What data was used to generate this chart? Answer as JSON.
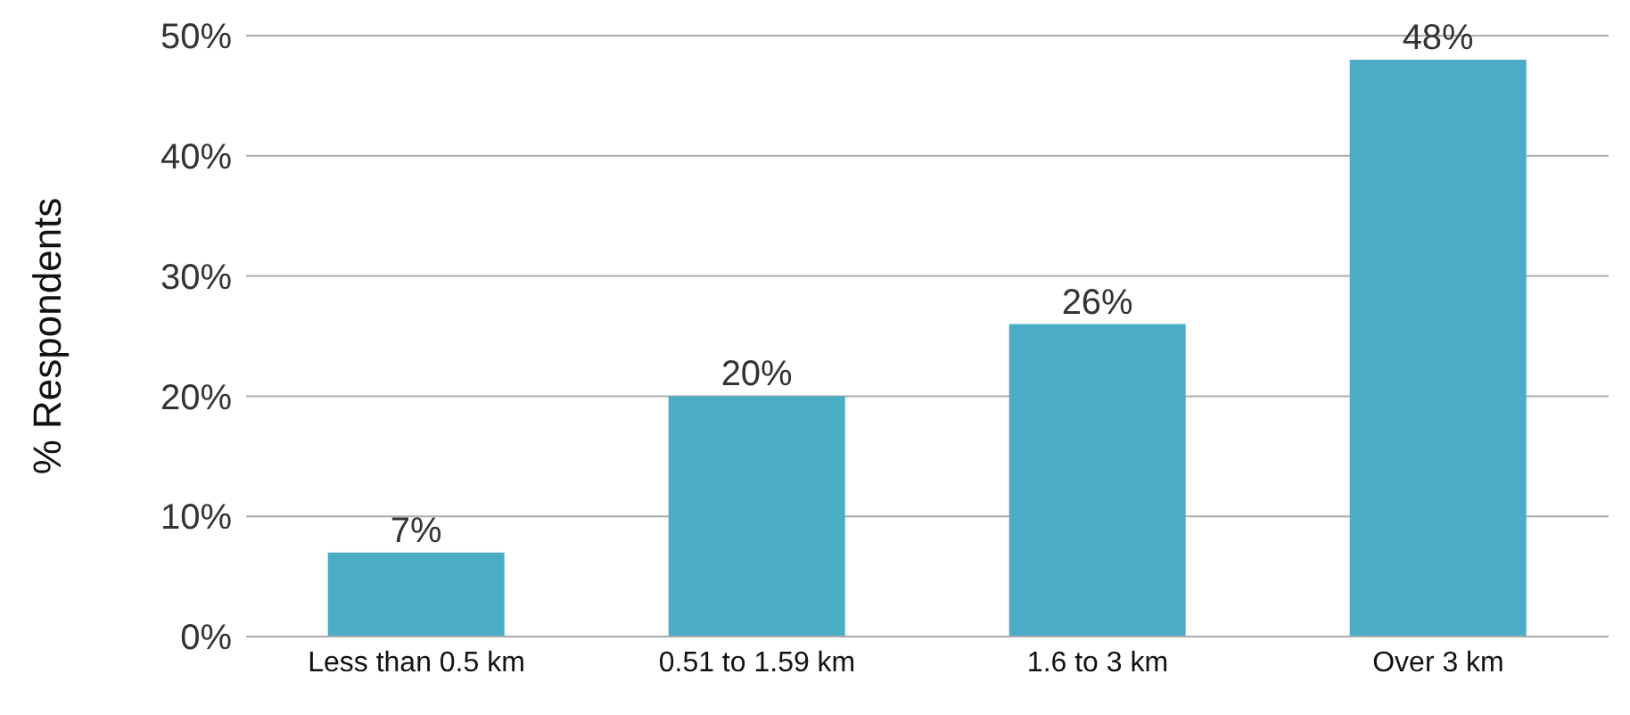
{
  "chart_data": {
    "type": "bar",
    "ylabel": "% Respondents",
    "categories": [
      "Less than 0.5 km",
      "0.51 to 1.59 km",
      "1.6 to 3 km",
      "Over 3 km"
    ],
    "values": [
      7,
      20,
      26,
      48
    ],
    "color": "#4bacc6",
    "value_labels": [
      "7%",
      "20%",
      "26%",
      "48%"
    ],
    "ylim": [
      0,
      50
    ],
    "yticks": [
      {
        "value": 0,
        "label": "0%"
      },
      {
        "value": 10,
        "label": "10%"
      },
      {
        "value": 20,
        "label": "20%"
      },
      {
        "value": 30,
        "label": "30%"
      },
      {
        "value": 40,
        "label": "40%"
      },
      {
        "value": 50,
        "label": "50%"
      }
    ],
    "grid": "y"
  }
}
